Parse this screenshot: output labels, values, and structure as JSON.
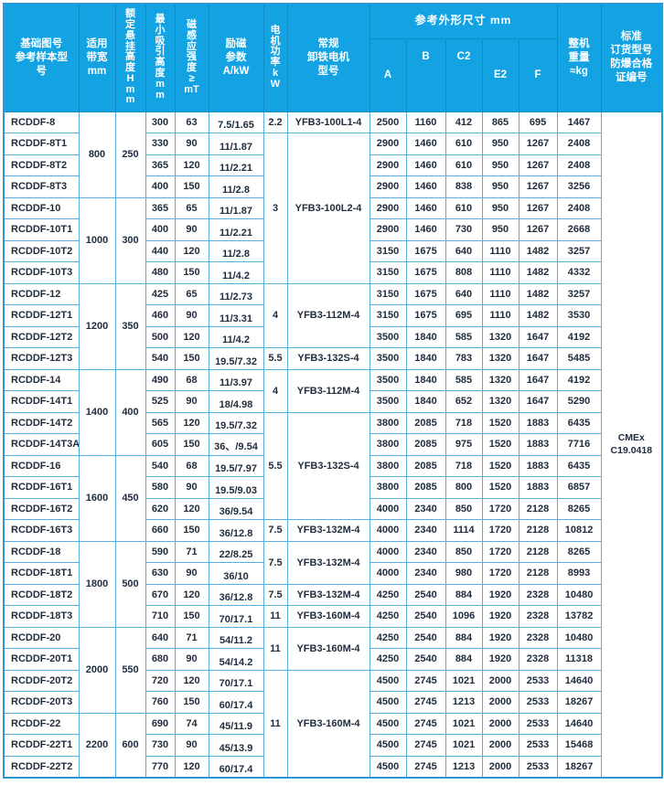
{
  "table": {
    "headers": {
      "model": "基础图号\n参考样本型\n号",
      "bandwidth": "适用\n带宽\nmm",
      "rated_height": "额\n定\n悬\n挂\n高\n度\nH\nm\nm",
      "min_attract_height": "最\n小\n吸\n引\n高\n度\nm\nm",
      "magnetic_flux": "磁\n感\n应\n强\n度\n≥\nmT",
      "excitation": "励磁\n参数\nA/kW",
      "motor_power": "电\n机\n功\n率\nk\nW",
      "motor_model": "常规\n卸铁电机\n型号",
      "dimensions_group": "参考外形尺寸  mm",
      "dim_a": "A",
      "dim_b": "B",
      "dim_c2": "C2",
      "dim_e2": "E2",
      "dim_f": "F",
      "weight": "整机\n重量\n≈kg",
      "certificate": "标准\n订货型号\n防爆合格\n证编号"
    },
    "certificate_value": "CMEx\nC19.0418",
    "rows": [
      {
        "model": "RCDDF-8",
        "bw": "800",
        "bw_span": 4,
        "rh": "250",
        "rh_span": 4,
        "min_h": "300",
        "mag": "63",
        "exc": "7.5/1.65",
        "mp": "2.2",
        "mp_span": 1,
        "mm": "YFB3-100L1-4",
        "mm_span": 1,
        "A": "2500",
        "B": "1160",
        "C2": "412",
        "E2": "865",
        "F": "695",
        "wt": "1467"
      },
      {
        "model": "RCDDF-8T1",
        "min_h": "330",
        "mag": "90",
        "exc": "11/1.87",
        "mp": "3",
        "mp_span": 7,
        "mm": "YFB3-100L2-4",
        "mm_span": 7,
        "A": "2900",
        "B": "1460",
        "C2": "610",
        "E2": "950",
        "F": "1267",
        "wt": "2408"
      },
      {
        "model": "RCDDF-8T2",
        "min_h": "365",
        "mag": "120",
        "exc": "11/2.21",
        "A": "2900",
        "B": "1460",
        "C2": "610",
        "E2": "950",
        "F": "1267",
        "wt": "2408"
      },
      {
        "model": "RCDDF-8T3",
        "min_h": "400",
        "mag": "150",
        "exc": "11/2.8",
        "A": "2900",
        "B": "1460",
        "C2": "838",
        "E2": "950",
        "F": "1267",
        "wt": "3256"
      },
      {
        "model": "RCDDF-10",
        "bw": "1000",
        "bw_span": 4,
        "rh": "300",
        "rh_span": 4,
        "min_h": "365",
        "mag": "65",
        "exc": "11/1.87",
        "A": "2900",
        "B": "1460",
        "C2": "610",
        "E2": "950",
        "F": "1267",
        "wt": "2408"
      },
      {
        "model": "RCDDF-10T1",
        "min_h": "400",
        "mag": "90",
        "exc": "11/2.21",
        "A": "2900",
        "B": "1460",
        "C2": "730",
        "E2": "950",
        "F": "1267",
        "wt": "2668"
      },
      {
        "model": "RCDDF-10T2",
        "min_h": "440",
        "mag": "120",
        "exc": "11/2.8",
        "A": "3150",
        "B": "1675",
        "C2": "640",
        "E2": "1110",
        "F": "1482",
        "wt": "3257"
      },
      {
        "model": "RCDDF-10T3",
        "min_h": "480",
        "mag": "150",
        "exc": "11/4.2",
        "A": "3150",
        "B": "1675",
        "C2": "808",
        "E2": "1110",
        "F": "1482",
        "wt": "4332"
      },
      {
        "model": "RCDDF-12",
        "bw": "1200",
        "bw_span": 4,
        "rh": "350",
        "rh_span": 4,
        "min_h": "425",
        "mag": "65",
        "exc": "11/2.73",
        "mp": "4",
        "mp_span": 3,
        "mm": "YFB3-112M-4",
        "mm_span": 3,
        "A": "3150",
        "B": "1675",
        "C2": "640",
        "E2": "1110",
        "F": "1482",
        "wt": "3257"
      },
      {
        "model": "RCDDF-12T1",
        "min_h": "460",
        "mag": "90",
        "exc": "11/3.31",
        "A": "3150",
        "B": "1675",
        "C2": "695",
        "E2": "1110",
        "F": "1482",
        "wt": "3530"
      },
      {
        "model": "RCDDF-12T2",
        "min_h": "500",
        "mag": "120",
        "exc": "11/4.2",
        "A": "3500",
        "B": "1840",
        "C2": "585",
        "E2": "1320",
        "F": "1647",
        "wt": "4192"
      },
      {
        "model": "RCDDF-12T3",
        "min_h": "540",
        "mag": "150",
        "exc": "19.5/7.32",
        "mp": "5.5",
        "mp_span": 1,
        "mm": "YFB3-132S-4",
        "mm_span": 1,
        "A": "3500",
        "B": "1840",
        "C2": "783",
        "E2": "1320",
        "F": "1647",
        "wt": "5485"
      },
      {
        "model": "RCDDF-14",
        "bw": "1400",
        "bw_span": 4,
        "rh": "400",
        "rh_span": 4,
        "min_h": "490",
        "mag": "68",
        "exc": "11/3.97",
        "mp": "4",
        "mp_span": 2,
        "mm": "YFB3-112M-4",
        "mm_span": 2,
        "A": "3500",
        "B": "1840",
        "C2": "585",
        "E2": "1320",
        "F": "1647",
        "wt": "4192"
      },
      {
        "model": "RCDDF-14T1",
        "min_h": "525",
        "mag": "90",
        "exc": "18/4.98",
        "A": "3500",
        "B": "1840",
        "C2": "652",
        "E2": "1320",
        "F": "1647",
        "wt": "5290"
      },
      {
        "model": "RCDDF-14T2",
        "min_h": "565",
        "mag": "120",
        "exc": "19.5/7.32",
        "mp": "5.5",
        "mp_span": 5,
        "mm": "YFB3-132S-4",
        "mm_span": 5,
        "A": "3800",
        "B": "2085",
        "C2": "718",
        "E2": "1520",
        "F": "1883",
        "wt": "6435"
      },
      {
        "model": "RCDDF-14T3A",
        "min_h": "605",
        "mag": "150",
        "exc": "36、/9.54",
        "A": "3800",
        "B": "2085",
        "C2": "975",
        "E2": "1520",
        "F": "1883",
        "wt": "7716"
      },
      {
        "model": "RCDDF-16",
        "bw": "1600",
        "bw_span": 4,
        "rh": "450",
        "rh_span": 4,
        "min_h": "540",
        "mag": "68",
        "exc": "19.5/7.97",
        "A": "3800",
        "B": "2085",
        "C2": "718",
        "E2": "1520",
        "F": "1883",
        "wt": "6435"
      },
      {
        "model": "RCDDF-16T1",
        "min_h": "580",
        "mag": "90",
        "exc": "19.5/9.03",
        "A": "3800",
        "B": "2085",
        "C2": "800",
        "E2": "1520",
        "F": "1883",
        "wt": "6857"
      },
      {
        "model": "RCDDF-16T2",
        "min_h": "620",
        "mag": "120",
        "exc": "36/9.54",
        "A": "4000",
        "B": "2340",
        "C2": "850",
        "E2": "1720",
        "F": "2128",
        "wt": "8265"
      },
      {
        "model": "RCDDF-16T3",
        "min_h": "660",
        "mag": "150",
        "exc": "36/12.8",
        "mp": "7.5",
        "mp_span": 1,
        "mm": "YFB3-132M-4",
        "mm_span": 1,
        "A": "4000",
        "B": "2340",
        "C2": "1114",
        "E2": "1720",
        "F": "2128",
        "wt": "10812"
      },
      {
        "model": "RCDDF-18",
        "bw": "1800",
        "bw_span": 4,
        "rh": "500",
        "rh_span": 4,
        "min_h": "590",
        "mag": "71",
        "exc": "22/8.25",
        "mp": "7.5",
        "mp_span": 2,
        "mm": "YFB3-132M-4",
        "mm_span": 2,
        "A": "4000",
        "B": "2340",
        "C2": "850",
        "E2": "1720",
        "F": "2128",
        "wt": "8265"
      },
      {
        "model": "RCDDF-18T1",
        "min_h": "630",
        "mag": "90",
        "exc": "36/10",
        "A": "4000",
        "B": "2340",
        "C2": "980",
        "E2": "1720",
        "F": "2128",
        "wt": "8993"
      },
      {
        "model": "RCDDF-18T2",
        "min_h": "670",
        "mag": "120",
        "exc": "36/12.8",
        "mp": "7.5",
        "mp_span": 1,
        "mm": "YFB3-132M-4",
        "mm_span": 1,
        "A": "4250",
        "B": "2540",
        "C2": "884",
        "E2": "1920",
        "F": "2328",
        "wt": "10480"
      },
      {
        "model": "RCDDF-18T3",
        "min_h": "710",
        "mag": "150",
        "exc": "70/17.1",
        "mp": "11",
        "mp_span": 1,
        "mm": "YFB3-160M-4",
        "mm_span": 1,
        "A": "4250",
        "B": "2540",
        "C2": "1096",
        "E2": "1920",
        "F": "2328",
        "wt": "13782"
      },
      {
        "model": "RCDDF-20",
        "bw": "2000",
        "bw_span": 4,
        "rh": "550",
        "rh_span": 4,
        "min_h": "640",
        "mag": "71",
        "exc": "54/11.2",
        "mp": "11",
        "mp_span": 2,
        "mm": "YFB3-160M-4",
        "mm_span": 2,
        "A": "4250",
        "B": "2540",
        "C2": "884",
        "E2": "1920",
        "F": "2328",
        "wt": "10480"
      },
      {
        "model": "RCDDF-20T1",
        "min_h": "680",
        "mag": "90",
        "exc": "54/14.2",
        "A": "4250",
        "B": "2540",
        "C2": "884",
        "E2": "1920",
        "F": "2328",
        "wt": "11318"
      },
      {
        "model": "RCDDF-20T2",
        "min_h": "720",
        "mag": "120",
        "exc": "70/17.1",
        "mp": "11",
        "mp_span": 5,
        "mm": "YFB3-160M-4",
        "mm_span": 5,
        "A": "4500",
        "B": "2745",
        "C2": "1021",
        "E2": "2000",
        "F": "2533",
        "wt": "14640"
      },
      {
        "model": "RCDDF-20T3",
        "min_h": "760",
        "mag": "150",
        "exc": "60/17.4",
        "A": "4500",
        "B": "2745",
        "C2": "1213",
        "E2": "2000",
        "F": "2533",
        "wt": "18267"
      },
      {
        "model": "RCDDF-22",
        "bw": "2200",
        "bw_span": 3,
        "rh": "600",
        "rh_span": 3,
        "min_h": "690",
        "mag": "74",
        "exc": "45/11.9",
        "A": "4500",
        "B": "2745",
        "C2": "1021",
        "E2": "2000",
        "F": "2533",
        "wt": "14640"
      },
      {
        "model": "RCDDF-22T1",
        "min_h": "730",
        "mag": "90",
        "exc": "45/13.9",
        "A": "4500",
        "B": "2745",
        "C2": "1021",
        "E2": "2000",
        "F": "2533",
        "wt": "15468"
      },
      {
        "model": "RCDDF-22T2",
        "min_h": "770",
        "mag": "120",
        "exc": "60/17.4",
        "A": "4500",
        "B": "2745",
        "C2": "1213",
        "E2": "2000",
        "F": "2533",
        "wt": "18267"
      }
    ]
  },
  "colors": {
    "header_bg": "#13a3e3",
    "header_line": "#0c8cc8",
    "grid_line": "#58aede",
    "outer_border": "#2b97d8",
    "text": "#1f2c3d",
    "header_text": "#ffffff"
  }
}
